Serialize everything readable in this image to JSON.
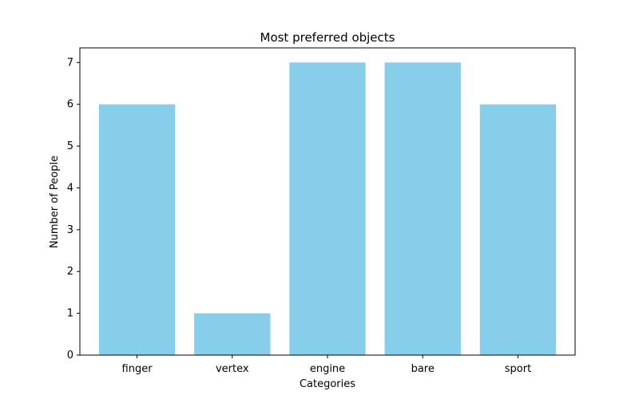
{
  "chart_data": {
    "type": "bar",
    "title": "Most preferred objects",
    "xlabel": "Categories",
    "ylabel": "Number of People",
    "categories": [
      "finger",
      "vertex",
      "engine",
      "bare",
      "sport"
    ],
    "values": [
      6,
      1,
      7,
      7,
      6
    ],
    "ylim": [
      0,
      7.35
    ],
    "yticks": [
      "0",
      "1",
      "2",
      "3",
      "4",
      "5",
      "6",
      "7"
    ],
    "bar_color": "#87CEEB",
    "grid": false
  }
}
